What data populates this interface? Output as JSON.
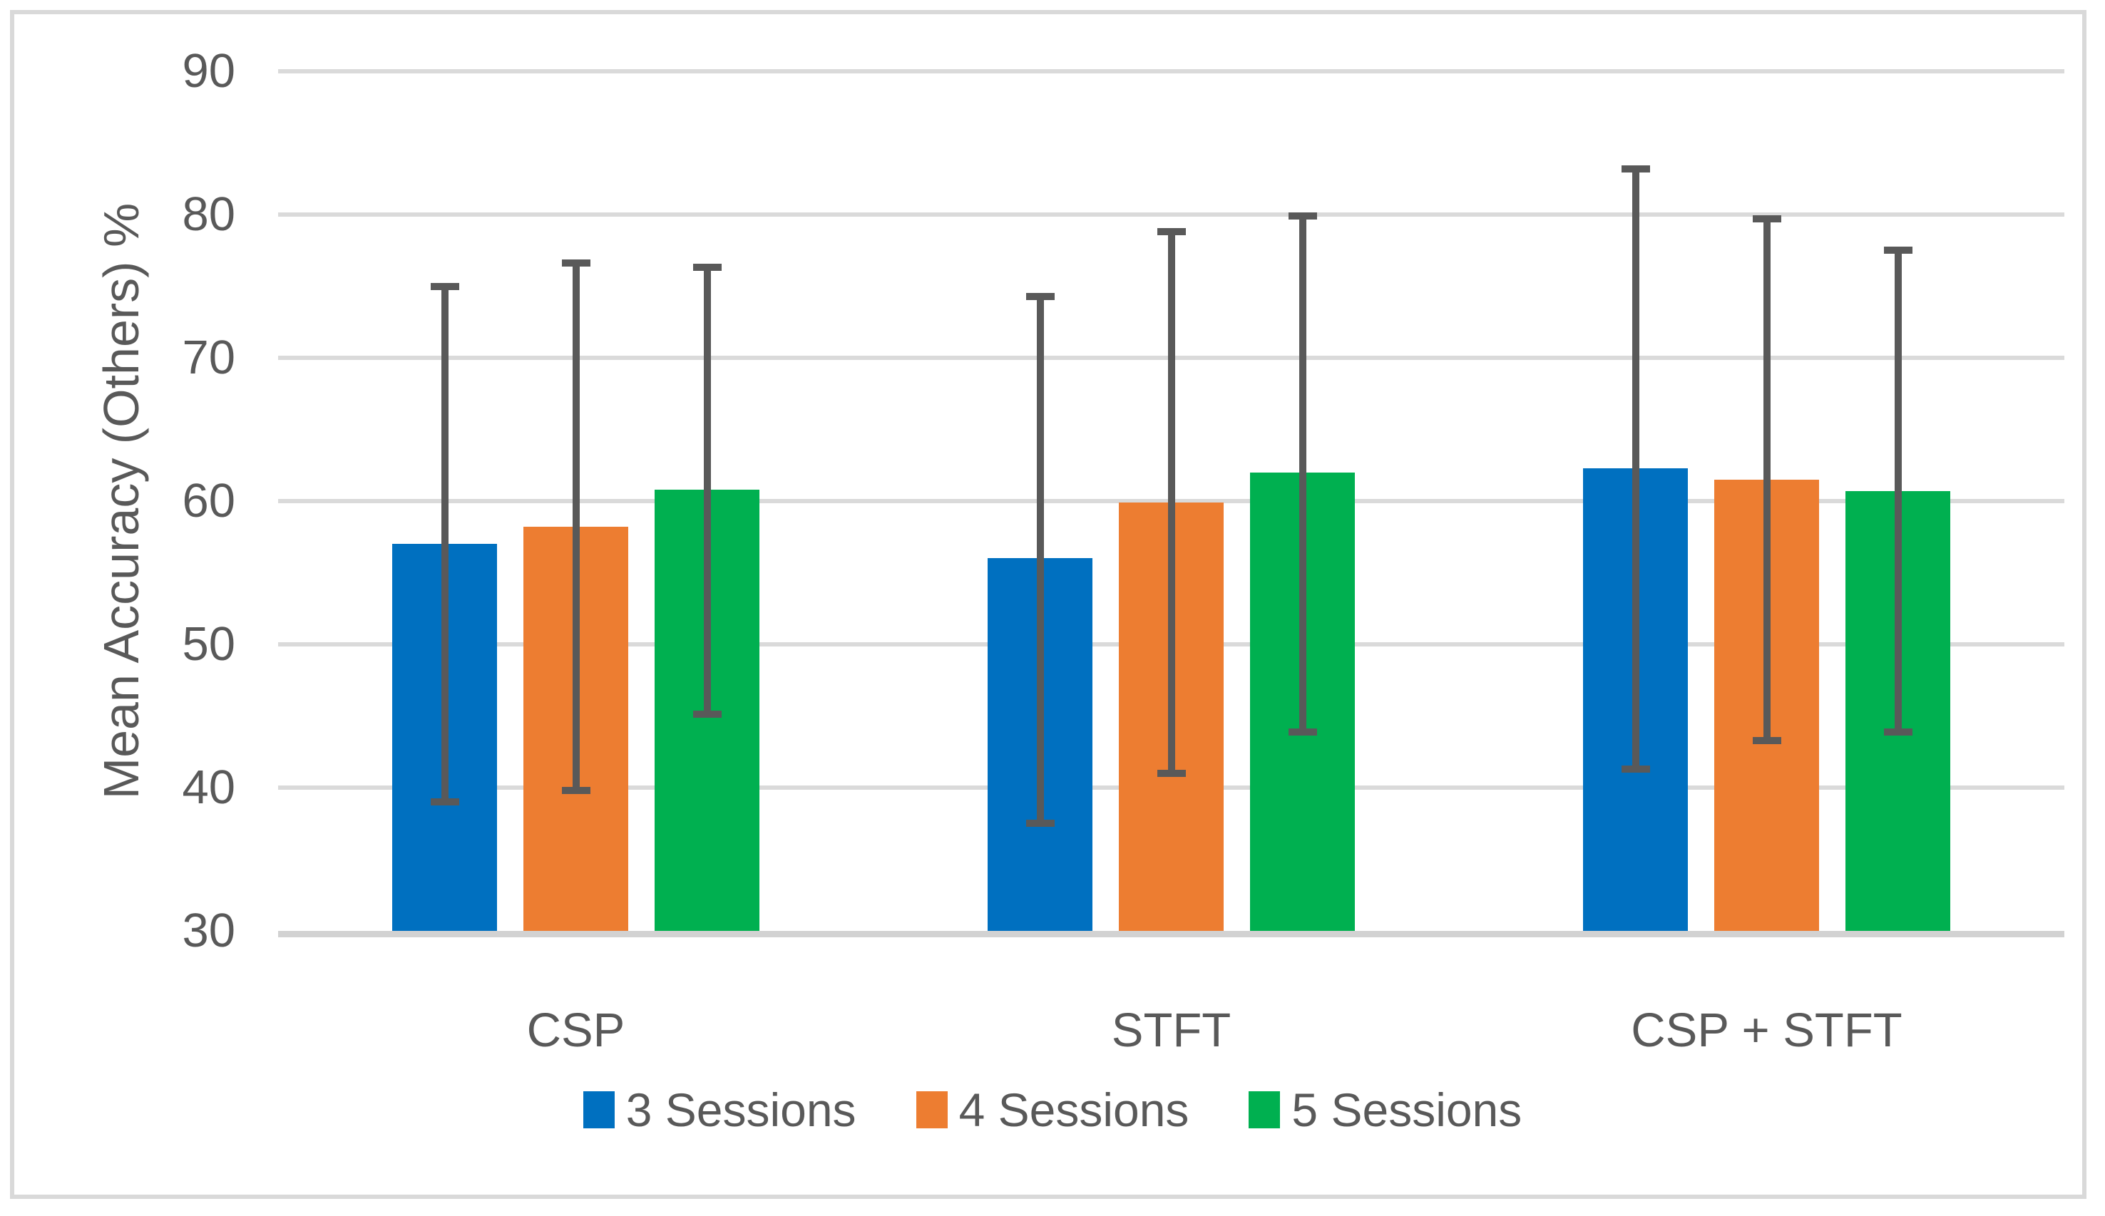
{
  "style": {
    "background": "#FFFFFF",
    "frame_border_color": "#D9D9D9",
    "gridline_color": "#DADADA",
    "axis_line_color": "#D2D2D2",
    "text_color": "#595959",
    "error_bar_color": "#595959",
    "series_colors": {
      "blue": "#0070C0",
      "orange": "#ED7D31",
      "green": "#00B050"
    }
  },
  "chart_data": {
    "type": "bar",
    "title": "",
    "xlabel": "",
    "ylabel": "Mean Accuracy (Others) %",
    "ylim": [
      30,
      90
    ],
    "yticks": [
      90,
      80,
      70,
      60,
      50,
      40,
      30
    ],
    "grid": "horizontal",
    "has_error_bars": true,
    "legend_position": "bottom",
    "categories": [
      "CSP",
      "STFT",
      "CSP + STFT"
    ],
    "series": [
      {
        "name": "3 Sessions",
        "color": "#0070C0",
        "values": [
          57.0,
          56.0,
          62.3
        ],
        "error_low": [
          39.0,
          37.5,
          41.3
        ],
        "error_high": [
          75.0,
          74.3,
          83.2
        ]
      },
      {
        "name": "4 Sessions",
        "color": "#ED7D31",
        "values": [
          58.2,
          59.9,
          61.5
        ],
        "error_low": [
          39.8,
          41.0,
          43.3
        ],
        "error_high": [
          76.6,
          78.8,
          79.7
        ]
      },
      {
        "name": "5 Sessions",
        "color": "#00B050",
        "values": [
          60.8,
          62.0,
          60.7
        ],
        "error_low": [
          45.1,
          43.9,
          43.9
        ],
        "error_high": [
          76.3,
          79.9,
          77.5
        ]
      }
    ]
  }
}
